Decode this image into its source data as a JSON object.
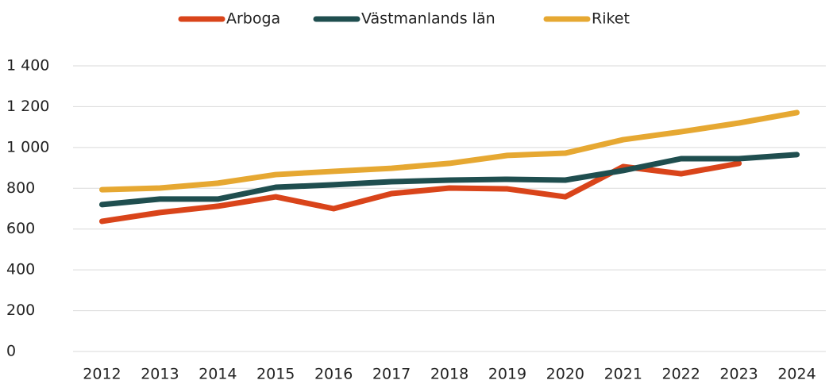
{
  "chart_data": {
    "type": "line",
    "categories": [
      "2012",
      "2013",
      "2014",
      "2015",
      "2016",
      "2017",
      "2018",
      "2019",
      "2020",
      "2021",
      "2022",
      "2023",
      "2024"
    ],
    "series": [
      {
        "name": "Arboga",
        "color": "#d9441a",
        "values": [
          638,
          681,
          712,
          758,
          700,
          774,
          801,
          797,
          758,
          906,
          871,
          922,
          null
        ]
      },
      {
        "name": "Västmanlands län",
        "color": "#1f4e4f",
        "values": [
          720,
          747,
          747,
          805,
          817,
          832,
          840,
          844,
          840,
          887,
          945,
          945,
          965
        ]
      },
      {
        "name": "Riket",
        "color": "#e6a832",
        "values": [
          793,
          801,
          825,
          867,
          883,
          898,
          922,
          961,
          972,
          1038,
          1077,
          1120,
          1171
        ]
      }
    ],
    "ylim": [
      0,
      1400
    ],
    "yticks": [
      0,
      200,
      400,
      600,
      800,
      {
        "value": 1000,
        "label": "1 000"
      },
      {
        "value": 1200,
        "label": "1 200"
      },
      {
        "value": 1400,
        "label": "1 400"
      }
    ],
    "grid": true,
    "legend": "top"
  }
}
